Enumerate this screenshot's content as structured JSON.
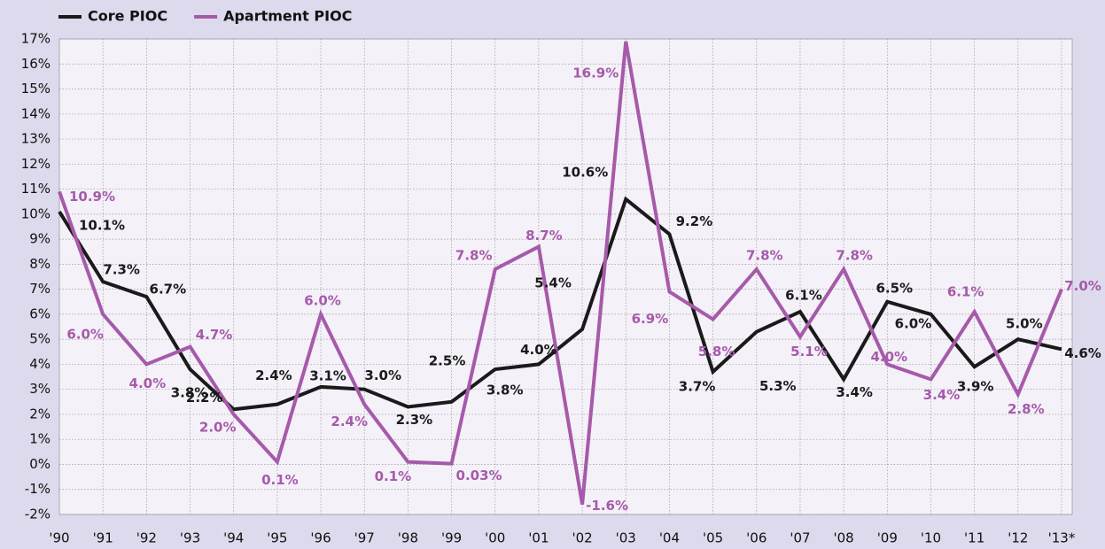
{
  "chart_data": {
    "type": "line",
    "categories": [
      "'90",
      "'91",
      "'92",
      "'93",
      "'94",
      "'95",
      "'96",
      "'97",
      "'98",
      "'99",
      "'00",
      "'01",
      "'02",
      "'03",
      "'04",
      "'05",
      "'06",
      "'07",
      "'08",
      "'09",
      "'10",
      "'11",
      "'12",
      "'13*"
    ],
    "series": [
      {
        "name": "Core PIOC",
        "color": "#1a1a1a",
        "values": [
          10.1,
          7.3,
          6.7,
          3.8,
          2.2,
          2.4,
          3.1,
          3.0,
          2.3,
          2.5,
          3.8,
          4.0,
          5.4,
          10.6,
          9.2,
          3.7,
          5.3,
          6.1,
          3.4,
          6.5,
          6.0,
          3.9,
          5.0,
          4.6
        ],
        "value_labels": [
          "10.1%",
          "7.3%",
          "6.7%",
          "3.8%",
          "2.2%",
          "2.4%",
          "3.1%",
          "3.0%",
          "2.3%",
          "2.5%",
          "3.8%",
          "4.0%",
          "5.4%",
          "10.6%",
          "9.2%",
          "3.7%",
          "5.3%",
          "6.1%",
          "3.4%",
          "6.5%",
          "6.0%",
          "3.9%",
          "5.0%",
          "4.6%"
        ]
      },
      {
        "name": "Apartment PIOC",
        "color": "#a65aaa",
        "values": [
          10.9,
          6.0,
          4.0,
          4.7,
          2.0,
          0.1,
          6.0,
          2.4,
          0.1,
          0.03,
          7.8,
          8.7,
          -1.6,
          16.9,
          6.9,
          5.8,
          7.8,
          5.1,
          7.8,
          4.0,
          3.4,
          6.1,
          2.8,
          7.0
        ],
        "value_labels": [
          "10.9%",
          "6.0%",
          "4.0%",
          "4.7%",
          "2.0%",
          "0.1%",
          "6.0%",
          "2.4%",
          "0.1%",
          "0.03%",
          "7.8%",
          "8.7%",
          "-1.6%",
          "16.9%",
          "6.9%",
          "5.8%",
          "7.8%",
          "5.1%",
          "7.8%",
          "4.0%",
          "3.4%",
          "6.1%",
          "2.8%",
          "7.0%"
        ]
      }
    ],
    "ylim": [
      -2,
      17
    ],
    "yticks": [
      {
        "value": -2,
        "label": "-2%"
      },
      {
        "value": -1,
        "label": "-1%"
      },
      {
        "value": 0,
        "label": "0%"
      },
      {
        "value": 1,
        "label": "1%"
      },
      {
        "value": 2,
        "label": "2%"
      },
      {
        "value": 3,
        "label": "3%"
      },
      {
        "value": 4,
        "label": "4%"
      },
      {
        "value": 5,
        "label": "5%"
      },
      {
        "value": 6,
        "label": "6%"
      },
      {
        "value": 7,
        "label": "7%"
      },
      {
        "value": 8,
        "label": "8%"
      },
      {
        "value": 9,
        "label": "9%"
      },
      {
        "value": 10,
        "label": "10%"
      },
      {
        "value": 11,
        "label": "11%"
      },
      {
        "value": 12,
        "label": "12%"
      },
      {
        "value": 13,
        "label": "13%"
      },
      {
        "value": 14,
        "label": "14%"
      },
      {
        "value": 15,
        "label": "15%"
      },
      {
        "value": 16,
        "label": "16%"
      },
      {
        "value": 17,
        "label": "17%"
      }
    ],
    "grid": true
  }
}
